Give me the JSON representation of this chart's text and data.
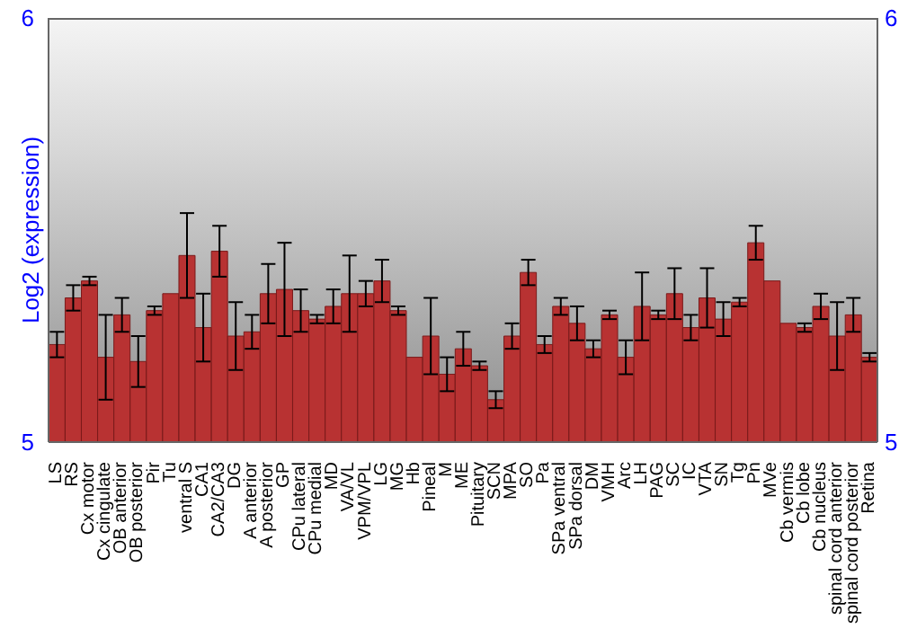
{
  "chart_data": {
    "type": "bar",
    "ylabel": "Log2 (expression)",
    "categories": [
      "LS",
      "RS",
      "Cx motor",
      "Cx cingulate",
      "OB anterior",
      "OB posterior",
      "Pir",
      "Tu",
      "ventral S",
      "CA1",
      "CA2/CA3",
      "DG",
      "A anterior",
      "A posterior",
      "GP",
      "CPu lateral",
      "CPu medial",
      "MD",
      "VA/VL",
      "VPM/VPL",
      "LG",
      "MG",
      "Hb",
      "Pineal",
      "M",
      "ME",
      "Pituitary",
      "SCN",
      "MPA",
      "SO",
      "Pa",
      "SPa ventral",
      "SPa dorsal",
      "DM",
      "VMH",
      "Arc",
      "LH",
      "PAG",
      "SC",
      "IC",
      "VTA",
      "SN",
      "Tg",
      "Pn",
      "MVe",
      "Cb vermis",
      "Cb lobe",
      "Cb nucleus",
      "spinal cord anterior",
      "spinal cord posterior",
      "Retina"
    ],
    "values": [
      5.23,
      5.34,
      5.38,
      5.2,
      5.3,
      5.19,
      5.31,
      5.35,
      5.44,
      5.27,
      5.45,
      5.25,
      5.26,
      5.35,
      5.36,
      5.31,
      5.29,
      5.32,
      5.35,
      5.35,
      5.38,
      5.31,
      5.2,
      5.25,
      5.16,
      5.22,
      5.18,
      5.1,
      5.25,
      5.4,
      5.23,
      5.32,
      5.28,
      5.22,
      5.3,
      5.2,
      5.32,
      5.3,
      5.35,
      5.27,
      5.34,
      5.29,
      5.33,
      5.47,
      5.38,
      5.28,
      5.27,
      5.32,
      5.25,
      5.3,
      5.2
    ],
    "errors": [
      0.03,
      0.03,
      0.01,
      0.1,
      0.04,
      0.06,
      0.01,
      null,
      0.1,
      0.08,
      0.06,
      0.08,
      0.04,
      0.07,
      0.11,
      0.05,
      0.01,
      0.04,
      0.09,
      0.03,
      0.05,
      0.01,
      null,
      0.09,
      0.04,
      0.04,
      0.01,
      0.02,
      0.03,
      0.03,
      0.02,
      0.02,
      0.04,
      0.02,
      0.01,
      0.04,
      0.08,
      0.01,
      0.06,
      0.03,
      0.07,
      0.04,
      0.01,
      0.04,
      null,
      null,
      0.01,
      0.03,
      0.08,
      0.04,
      0.01
    ],
    "color": "#b83232",
    "ylim": [
      5,
      6
    ],
    "yticks": [
      5,
      6
    ],
    "y2lim": [
      5,
      6
    ],
    "y2ticks": [
      5,
      6
    ],
    "grid": false
  }
}
